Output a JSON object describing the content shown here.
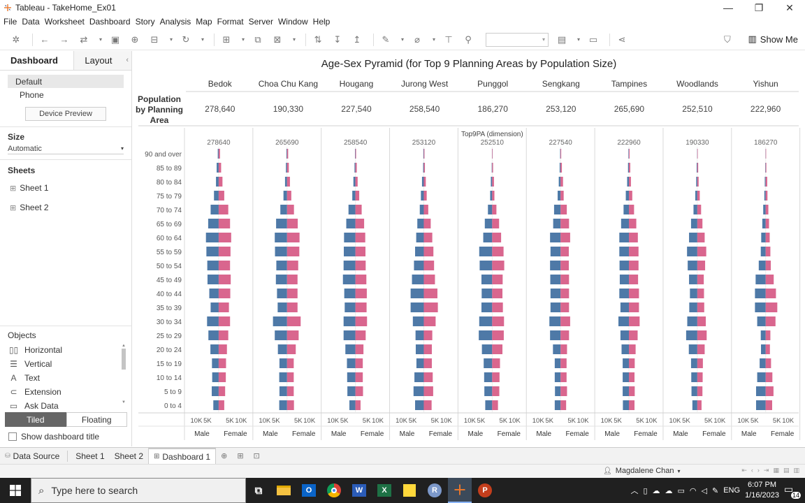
{
  "window": {
    "title": "Tableau - TakeHome_Ex01",
    "controls": {
      "minimize": "—",
      "restore": "❐",
      "close": "✕"
    }
  },
  "menu": [
    "File",
    "Data",
    "Worksheet",
    "Dashboard",
    "Story",
    "Analysis",
    "Map",
    "Format",
    "Server",
    "Window",
    "Help"
  ],
  "toolbar": {
    "show_me": "Show Me"
  },
  "left_panel": {
    "tabs": {
      "dashboard": "Dashboard",
      "layout": "Layout",
      "collapse": "‹"
    },
    "devices": [
      "Default",
      "Phone"
    ],
    "device_preview": "Device Preview",
    "size_heading": "Size",
    "size_value": "Automatic",
    "sheets_heading": "Sheets",
    "sheets": [
      "Sheet 1",
      "Sheet 2"
    ],
    "objects_heading": "Objects",
    "objects": [
      {
        "label": "Horizontal",
        "icon": "horizontal-container-icon",
        "glyph": "▯▯"
      },
      {
        "label": "Vertical",
        "icon": "vertical-container-icon",
        "glyph": "☰"
      },
      {
        "label": "Text",
        "icon": "text-icon",
        "glyph": "A"
      },
      {
        "label": "Extension",
        "icon": "extension-icon",
        "glyph": "⊂"
      },
      {
        "label": "Ask Data",
        "icon": "ask-data-icon",
        "glyph": "▭"
      }
    ],
    "tiled": "Tiled",
    "floating": "Floating",
    "show_title": "Show dashboard title"
  },
  "dashboard": {
    "title": "Age-Sex Pyramid (for Top 9 Planning Areas by Population Size)",
    "row_header": [
      "Population",
      "by Planning",
      "Area"
    ],
    "areas": [
      "Bedok",
      "Choa Chu Kang",
      "Hougang",
      "Jurong West",
      "Punggol",
      "Sengkang",
      "Tampines",
      "Woodlands",
      "Yishun"
    ],
    "populations": [
      "278,640",
      "190,330",
      "227,540",
      "258,540",
      "186,270",
      "253,120",
      "265,690",
      "252,510",
      "222,960"
    ]
  },
  "chart_data": {
    "type": "bar",
    "subtype": "population-pyramid",
    "header": "Top9PA (dimension)",
    "panels": [
      "278640",
      "265690",
      "258540",
      "253120",
      "252510",
      "227540",
      "222960",
      "190330",
      "186270"
    ],
    "age_groups": [
      "90 and over",
      "85 to 89",
      "80 to 84",
      "75 to 79",
      "70 to 74",
      "65 to 69",
      "60 to 64",
      "55 to 59",
      "50 to 54",
      "45 to 49",
      "40 to 44",
      "35 to 39",
      "30 to 34",
      "25 to 29",
      "20 to 24",
      "15 to 19",
      "10 to 14",
      "5 to 9",
      "0 to 4"
    ],
    "x_ticks_left": [
      "10K",
      "5K"
    ],
    "x_ticks_right": [
      "5K",
      "10K"
    ],
    "xlabel_left": "Male",
    "xlabel_right": "Female",
    "xlim": [
      -15000,
      15000
    ],
    "colors": {
      "male": "#4e79a7",
      "female": "#d9668e"
    },
    "series": [
      {
        "panel": "278640",
        "male": [
          400,
          900,
          1200,
          2100,
          3600,
          4700,
          5700,
          5500,
          5100,
          5000,
          4200,
          3600,
          5200,
          4600,
          3700,
          3000,
          2900,
          3100,
          2400
        ],
        "female": [
          600,
          1100,
          1700,
          2500,
          4300,
          5100,
          5600,
          5300,
          5100,
          5400,
          5200,
          4600,
          5100,
          4300,
          3700,
          3300,
          3200,
          2900,
          2500
        ]
      },
      {
        "panel": "265690",
        "male": [
          300,
          500,
          900,
          1600,
          3000,
          4900,
          5500,
          5400,
          4800,
          5000,
          4500,
          4200,
          6300,
          5500,
          4100,
          3400,
          3500,
          3400,
          3500
        ],
        "female": [
          500,
          800,
          1300,
          1900,
          3100,
          4800,
          5600,
          5500,
          5000,
          4700,
          4700,
          4700,
          6100,
          5200,
          3900,
          3000,
          3000,
          3000,
          3100
        ]
      },
      {
        "panel": "258540",
        "male": [
          200,
          400,
          900,
          1400,
          3100,
          4100,
          5100,
          5200,
          5300,
          5600,
          5000,
          4800,
          5300,
          5300,
          4500,
          3800,
          3700,
          3600,
          2700
        ],
        "female": [
          300,
          600,
          1000,
          1700,
          2800,
          3900,
          4400,
          4500,
          4600,
          4900,
          5100,
          5000,
          5200,
          4600,
          3600,
          3300,
          3300,
          3400,
          2300
        ]
      },
      {
        "panel": "253120",
        "male": [
          200,
          300,
          800,
          1300,
          1800,
          2900,
          3400,
          3900,
          4400,
          5300,
          5900,
          5900,
          4900,
          3700,
          3600,
          3300,
          4200,
          4600,
          3900
        ],
        "female": [
          300,
          500,
          900,
          1300,
          2000,
          3100,
          3800,
          4300,
          4600,
          5000,
          6100,
          6300,
          5300,
          3800,
          3600,
          3600,
          4000,
          4200,
          3500
        ]
      },
      {
        "panel": "252510",
        "male": [
          100,
          200,
          600,
          900,
          1900,
          3300,
          4000,
          5800,
          5600,
          4800,
          4700,
          4800,
          5800,
          6000,
          4600,
          3800,
          3600,
          3500,
          3100
        ],
        "female": [
          200,
          400,
          800,
          1000,
          1900,
          3100,
          4000,
          5100,
          5400,
          4700,
          4600,
          4800,
          5300,
          5200,
          4600,
          3500,
          3300,
          3200,
          2600
        ]
      },
      {
        "panel": "227540",
        "male": [
          200,
          400,
          800,
          1300,
          2900,
          3300,
          4700,
          4500,
          4700,
          4600,
          4500,
          4500,
          5000,
          4700,
          3400,
          2600,
          2600,
          2500,
          2600
        ],
        "female": [
          300,
          600,
          1100,
          1400,
          2800,
          3800,
          4300,
          3700,
          3700,
          3800,
          3800,
          3800,
          4300,
          3800,
          2900,
          2700,
          2700,
          2900,
          2500
        ]
      },
      {
        "panel": "222960",
        "male": [
          200,
          400,
          800,
          1400,
          2400,
          3500,
          4300,
          4300,
          4200,
          4100,
          4300,
          3800,
          4700,
          3800,
          3300,
          2800,
          2800,
          2800,
          2700
        ],
        "female": [
          300,
          600,
          900,
          1500,
          2300,
          3300,
          4000,
          4300,
          4300,
          4100,
          4500,
          4500,
          4800,
          3900,
          3000,
          2600,
          2500,
          2600,
          2500
        ]
      },
      {
        "panel": "190330",
        "male": [
          100,
          300,
          500,
          900,
          1700,
          2800,
          3700,
          4600,
          4300,
          3700,
          3300,
          3600,
          4500,
          5000,
          3800,
          2800,
          2700,
          2600,
          2200
        ],
        "female": [
          200,
          400,
          600,
          1100,
          1700,
          2300,
          3300,
          4000,
          3500,
          2900,
          3000,
          3100,
          3800,
          4200,
          3300,
          2500,
          2400,
          2300,
          1900
        ]
      },
      {
        "panel": "186270",
        "male": [
          100,
          200,
          400,
          600,
          1100,
          1500,
          2000,
          2200,
          3100,
          4500,
          4800,
          4800,
          3800,
          2200,
          2100,
          2700,
          3800,
          4300,
          4300
        ],
        "female": [
          200,
          300,
          700,
          800,
          1200,
          1500,
          1800,
          2100,
          2300,
          3600,
          4600,
          5200,
          4400,
          2100,
          1900,
          2400,
          3000,
          3500,
          2900
        ]
      }
    ]
  },
  "bottom_tabs": [
    "Data Source",
    "Sheet 1",
    "Sheet 2",
    "Dashboard 1"
  ],
  "status": {
    "user": "Magdalene Chan"
  },
  "taskbar": {
    "search_placeholder": "Type here to search",
    "lang": "ENG",
    "time": "6:07 PM",
    "date": "1/16/2023",
    "notifications": "14"
  }
}
